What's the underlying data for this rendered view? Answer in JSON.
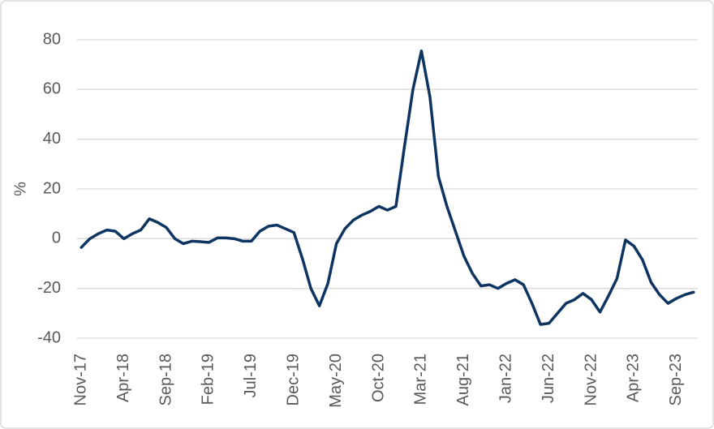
{
  "chart_data": {
    "type": "line",
    "y_label": "%",
    "categories": [
      "Nov-17",
      null,
      null,
      null,
      null,
      "Apr-18",
      null,
      null,
      null,
      null,
      "Sep-18",
      null,
      null,
      null,
      null,
      "Feb-19",
      null,
      null,
      null,
      null,
      "Jul-19",
      null,
      null,
      null,
      null,
      "Dec-19",
      null,
      null,
      null,
      null,
      "May-20",
      null,
      null,
      null,
      null,
      "Oct-20",
      null,
      null,
      null,
      null,
      "Mar-21",
      null,
      null,
      null,
      null,
      "Aug-21",
      null,
      null,
      null,
      null,
      "Jan-22",
      null,
      null,
      null,
      null,
      "Jun-22",
      null,
      null,
      null,
      null,
      "Nov-22",
      null,
      null,
      null,
      null,
      "Apr-23",
      null,
      null,
      null,
      null,
      "Sep-23",
      null,
      null
    ],
    "series": [
      {
        "color": "#0e3461",
        "values": [
          -3.5,
          0,
          2,
          3.5,
          3,
          0,
          2,
          3.5,
          8,
          6.5,
          4.5,
          0,
          -2,
          -1,
          -1.2,
          -1.5,
          0.3,
          0.3,
          0,
          -1,
          -1,
          3,
          5,
          5.5,
          4,
          2.5,
          -8,
          -20,
          -27,
          -18,
          -2,
          4,
          7.5,
          9.5,
          11,
          13,
          11.5,
          13,
          37,
          60,
          75.5,
          57,
          25,
          13,
          3,
          -7,
          -14,
          -19,
          -18.5,
          -20,
          -18,
          -16.5,
          -18.5,
          -26,
          -34.5,
          -34,
          -30,
          -26,
          -24.5,
          -22,
          -24.5,
          -29.5,
          -23,
          -16,
          -0.5,
          -3,
          -8.5,
          -17.5,
          -22.5,
          -26,
          -24,
          -22.5,
          -21.5
        ]
      }
    ],
    "ylim": [
      -40,
      80
    ],
    "yticks": [
      -40,
      -20,
      0,
      20,
      40,
      60,
      80
    ],
    "grid": true
  }
}
